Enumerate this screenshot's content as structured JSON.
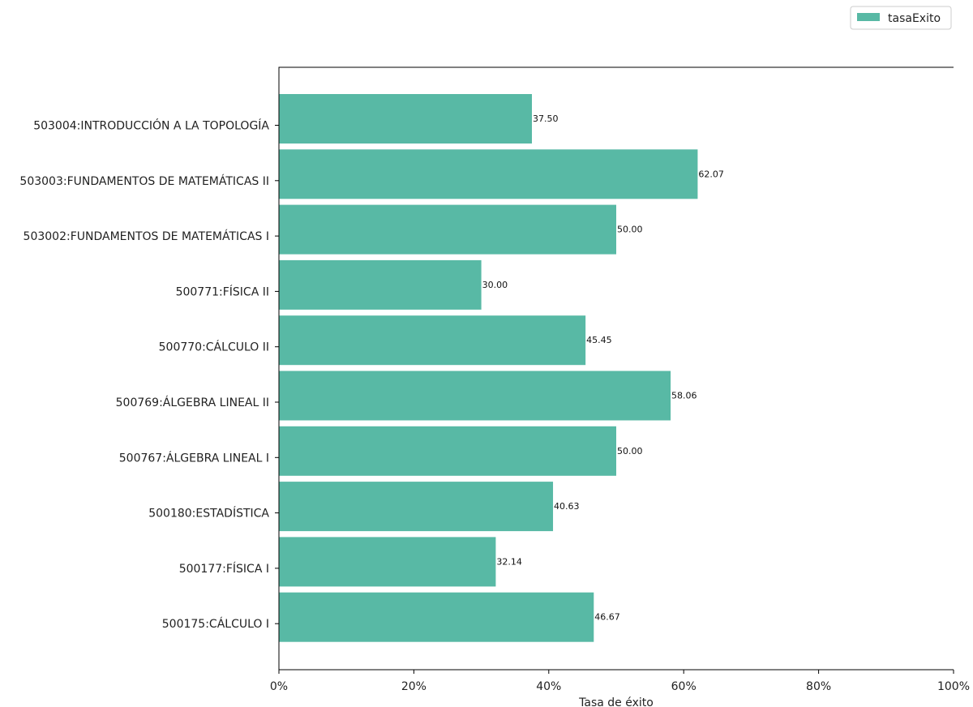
{
  "chart_data": {
    "type": "bar",
    "orientation": "horizontal",
    "categories": [
      "500175:CÁLCULO I",
      "500177:FÍSICA I",
      "500180:ESTADÍSTICA",
      "500767:ÁLGEBRA LINEAL I",
      "500769:ÁLGEBRA LINEAL II",
      "500770:CÁLCULO II",
      "500771:FÍSICA II",
      "503002:FUNDAMENTOS DE MATEMÁTICAS I",
      "503003:FUNDAMENTOS DE MATEMÁTICAS II",
      "503004:INTRODUCCIÓN A LA TOPOLOGÍA"
    ],
    "series": [
      {
        "name": "tasaExito",
        "color": "#58b9a5",
        "values": [
          46.67,
          32.14,
          40.63,
          50.0,
          58.06,
          45.45,
          30.0,
          50.0,
          62.07,
          37.5
        ],
        "labels": [
          "46.67",
          "32.14",
          "40.63",
          "50.00",
          "58.06",
          "45.45",
          "30.00",
          "50.00",
          "62.07",
          "37.50"
        ]
      }
    ],
    "xlabel": "Tasa de éxito",
    "ylabel": "",
    "title": "",
    "xlim": [
      0,
      100
    ],
    "xticks": [
      0,
      20,
      40,
      60,
      80,
      100
    ],
    "xtick_labels": [
      "0%",
      "20%",
      "40%",
      "60%",
      "80%",
      "100%"
    ],
    "grid": false,
    "legend": {
      "position": "top-right",
      "entries": [
        "tasaExito"
      ]
    }
  }
}
